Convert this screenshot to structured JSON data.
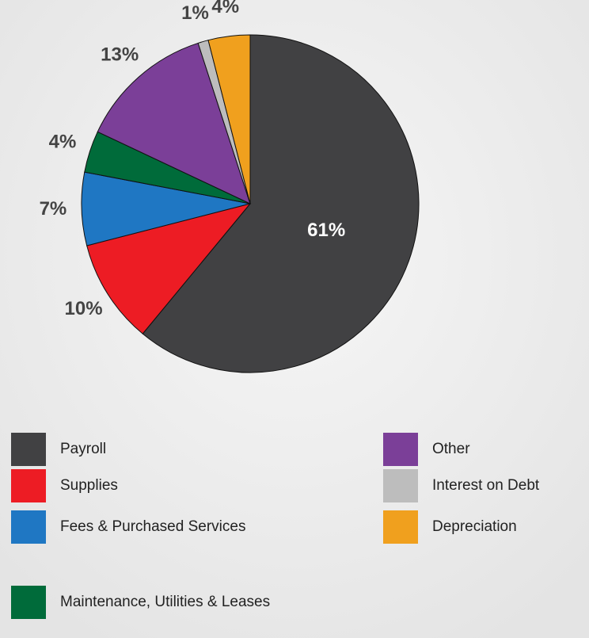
{
  "chart_data": {
    "type": "pie",
    "categories": [
      "Payroll",
      "Supplies",
      "Fees & Purchased Services",
      "Maintenance, Utilities & Leases",
      "Other",
      "Interest on Debt",
      "Depreciation"
    ],
    "values": [
      61,
      10,
      7,
      4,
      13,
      1,
      4
    ],
    "value_labels": [
      "61%",
      "10%",
      "7%",
      "4%",
      "13%",
      "1%",
      "4%"
    ],
    "colors": [
      "#414143",
      "#ed1c24",
      "#1f77c3",
      "#006b3a",
      "#7b3f98",
      "#bdbdbd",
      "#f0a01e"
    ]
  }
}
